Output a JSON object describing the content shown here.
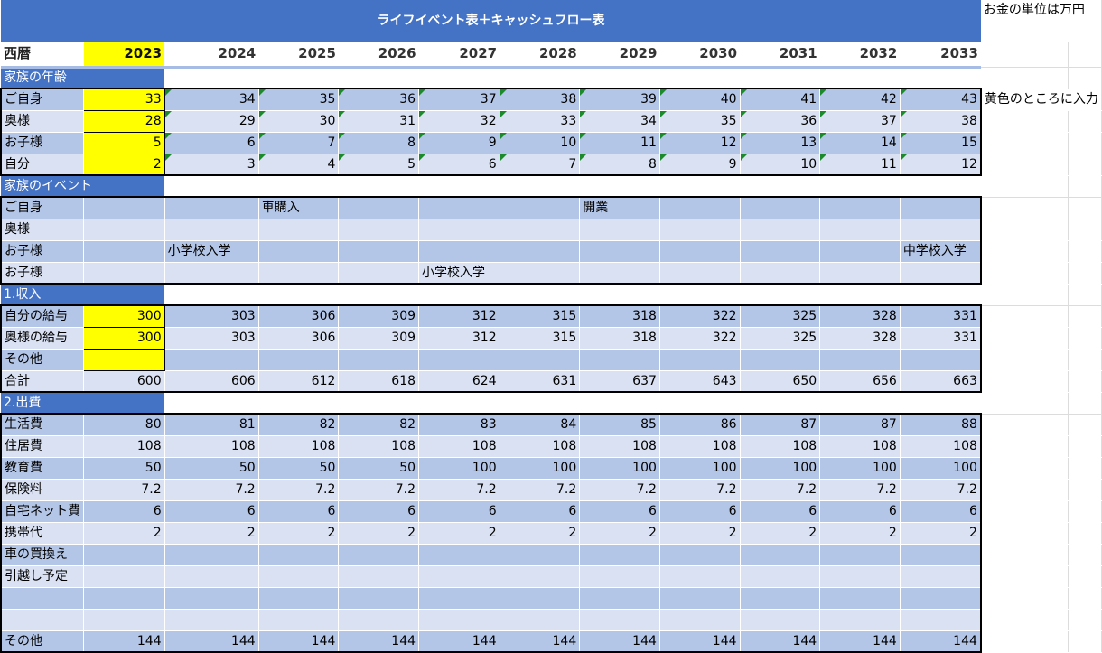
{
  "title": "ライフイベント表＋キャッシュフロー表",
  "note_unit": "お金の単位は万円",
  "note_input": "黄色のところに入力",
  "header_label": "西暦",
  "years": [
    "2023",
    "2024",
    "2025",
    "2026",
    "2027",
    "2028",
    "2029",
    "2030",
    "2031",
    "2032",
    "2033"
  ],
  "colors": {
    "header_blue": "#4472c4",
    "row_dark": "#b4c6e7",
    "row_light": "#d9e1f2",
    "input_yellow": "#ffff00",
    "marker_green": "#1a8a2a"
  },
  "sections": [
    {
      "heading": "家族の年齢",
      "rows": [
        {
          "label": "ご自身",
          "kind": "num",
          "yellow_first": true,
          "marker": true,
          "values": [
            "33",
            "34",
            "35",
            "36",
            "37",
            "38",
            "39",
            "40",
            "41",
            "42",
            "43"
          ]
        },
        {
          "label": "奥様",
          "kind": "num",
          "yellow_first": true,
          "marker": true,
          "values": [
            "28",
            "29",
            "30",
            "31",
            "32",
            "33",
            "34",
            "35",
            "36",
            "37",
            "38"
          ]
        },
        {
          "label": "お子様",
          "kind": "num",
          "yellow_first": true,
          "marker": true,
          "values": [
            "5",
            "6",
            "7",
            "8",
            "9",
            "10",
            "11",
            "12",
            "13",
            "14",
            "15"
          ]
        },
        {
          "label": "自分",
          "kind": "num",
          "yellow_first": true,
          "marker": true,
          "values": [
            "2",
            "3",
            "4",
            "5",
            "6",
            "7",
            "8",
            "9",
            "10",
            "11",
            "12"
          ]
        }
      ]
    },
    {
      "heading": "家族のイベント",
      "rows": [
        {
          "label": "ご自身",
          "kind": "txt",
          "values": [
            "",
            "",
            "車購入",
            "",
            "",
            "",
            "開業",
            "",
            "",
            "",
            ""
          ]
        },
        {
          "label": "奥様",
          "kind": "txt",
          "values": [
            "",
            "",
            "",
            "",
            "",
            "",
            "",
            "",
            "",
            "",
            ""
          ]
        },
        {
          "label": "お子様",
          "kind": "txt",
          "values": [
            "",
            "小学校入学",
            "",
            "",
            "",
            "",
            "",
            "",
            "",
            "",
            "中学校入学"
          ]
        },
        {
          "label": "お子様",
          "kind": "txt",
          "values": [
            "",
            "",
            "",
            "",
            "小学校入学",
            "",
            "",
            "",
            "",
            "",
            ""
          ]
        }
      ]
    },
    {
      "heading": "1.収入",
      "rows": [
        {
          "label": "自分の給与",
          "kind": "num",
          "yellow_first": true,
          "values": [
            "300",
            "303",
            "306",
            "309",
            "312",
            "315",
            "318",
            "322",
            "325",
            "328",
            "331"
          ]
        },
        {
          "label": "奥様の給与",
          "kind": "num",
          "yellow_first": true,
          "values": [
            "300",
            "303",
            "306",
            "309",
            "312",
            "315",
            "318",
            "322",
            "325",
            "328",
            "331"
          ]
        },
        {
          "label": "その他",
          "kind": "num",
          "yellow_first": true,
          "values": [
            "",
            "",
            "",
            "",
            "",
            "",
            "",
            "",
            "",
            "",
            ""
          ]
        },
        {
          "label": "合計",
          "kind": "num",
          "values": [
            "600",
            "606",
            "612",
            "618",
            "624",
            "631",
            "637",
            "643",
            "650",
            "656",
            "663"
          ]
        }
      ]
    },
    {
      "heading": "2.出費",
      "rows": [
        {
          "label": "生活費",
          "kind": "num",
          "values": [
            "80",
            "81",
            "82",
            "82",
            "83",
            "84",
            "85",
            "86",
            "87",
            "87",
            "88"
          ]
        },
        {
          "label": "住居費",
          "kind": "num",
          "values": [
            "108",
            "108",
            "108",
            "108",
            "108",
            "108",
            "108",
            "108",
            "108",
            "108",
            "108"
          ]
        },
        {
          "label": "教育費",
          "kind": "num",
          "values": [
            "50",
            "50",
            "50",
            "50",
            "100",
            "100",
            "100",
            "100",
            "100",
            "100",
            "100"
          ]
        },
        {
          "label": "保険料",
          "kind": "num",
          "values": [
            "7.2",
            "7.2",
            "7.2",
            "7.2",
            "7.2",
            "7.2",
            "7.2",
            "7.2",
            "7.2",
            "7.2",
            "7.2"
          ]
        },
        {
          "label": "自宅ネット費",
          "kind": "num",
          "values": [
            "6",
            "6",
            "6",
            "6",
            "6",
            "6",
            "6",
            "6",
            "6",
            "6",
            "6"
          ]
        },
        {
          "label": "携帯代",
          "kind": "num",
          "values": [
            "2",
            "2",
            "2",
            "2",
            "2",
            "2",
            "2",
            "2",
            "2",
            "2",
            "2"
          ]
        },
        {
          "label": "車の買換え",
          "kind": "num",
          "values": [
            "",
            "",
            "",
            "",
            "",
            "",
            "",
            "",
            "",
            "",
            ""
          ]
        },
        {
          "label": "引越し予定",
          "kind": "num",
          "values": [
            "",
            "",
            "",
            "",
            "",
            "",
            "",
            "",
            "",
            "",
            ""
          ]
        },
        {
          "label": "",
          "kind": "num",
          "values": [
            "",
            "",
            "",
            "",
            "",
            "",
            "",
            "",
            "",
            "",
            ""
          ]
        },
        {
          "label": "",
          "kind": "num",
          "values": [
            "",
            "",
            "",
            "",
            "",
            "",
            "",
            "",
            "",
            "",
            ""
          ]
        },
        {
          "label": "その他",
          "kind": "num",
          "values": [
            "144",
            "144",
            "144",
            "144",
            "144",
            "144",
            "144",
            "144",
            "144",
            "144",
            "144"
          ]
        }
      ]
    }
  ]
}
